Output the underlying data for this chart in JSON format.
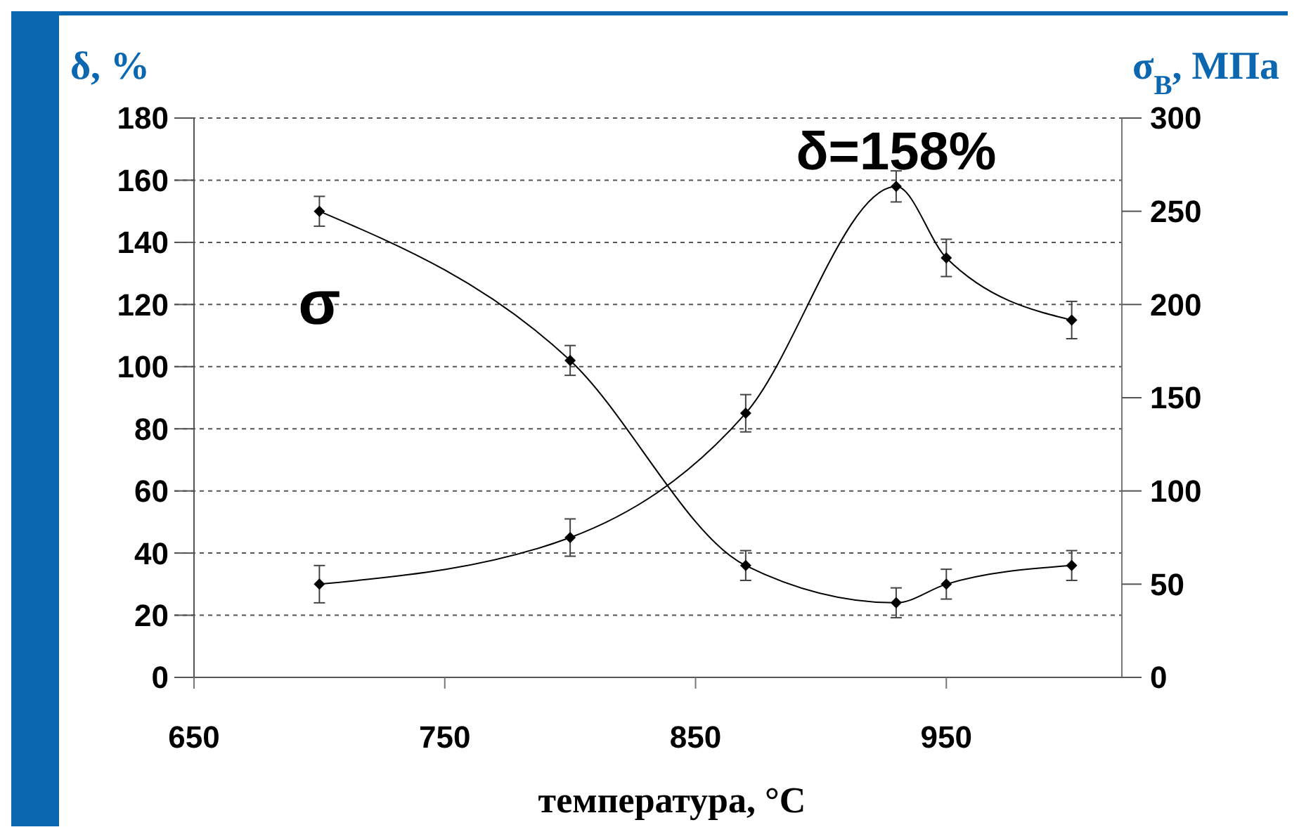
{
  "chart_data": {
    "type": "line",
    "xlabel": "температура, °C",
    "ylabel": "δ, %",
    "y2label": "σ$_{В}$, МПа",
    "x": [
      700,
      800,
      870,
      930,
      950,
      1000
    ],
    "xlim": [
      650,
      1020
    ],
    "xticks": [
      650,
      750,
      850,
      950
    ],
    "ylim": [
      0,
      180
    ],
    "yticks": [
      0,
      20,
      40,
      60,
      80,
      100,
      120,
      140,
      160,
      180
    ],
    "y2lim": [
      0,
      300
    ],
    "y2ticks": [
      0,
      50,
      100,
      150,
      200,
      250,
      300
    ],
    "grid": "y",
    "marker": "diamond",
    "line_style": "solid",
    "series": [
      {
        "color": "#000000",
        "values": [
          30,
          45,
          85,
          158,
          135,
          115
        ],
        "errors": [
          6,
          6,
          6,
          5,
          6,
          6
        ]
      },
      {
        "name": "σ",
        "axis": "y2",
        "color": "#000000",
        "values": [
          250,
          170,
          60,
          40,
          50,
          60
        ],
        "errors": [
          8,
          8,
          8,
          8,
          8,
          8
        ]
      }
    ],
    "annotations": [
      {
        "text": "δ=158%",
        "x": 930,
        "y": 158
      }
    ]
  }
}
